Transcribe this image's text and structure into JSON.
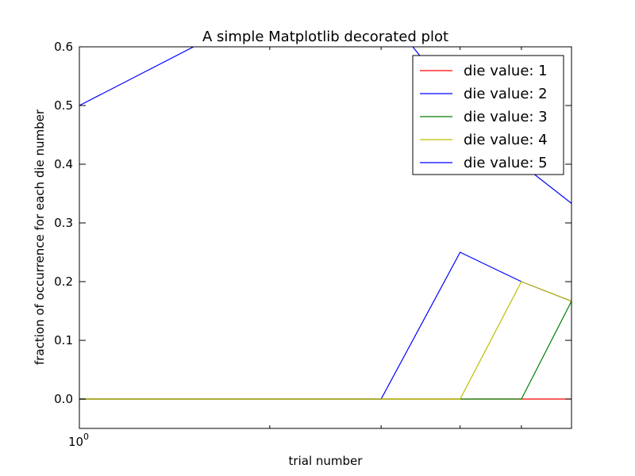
{
  "chart_data": {
    "type": "line",
    "title": "A simple Matplotlib decorated plot",
    "xlabel": "trial number",
    "ylabel": "fraction of occurrence for each die number",
    "xscale": "log",
    "x": [
      1,
      2,
      3,
      4,
      5,
      6
    ],
    "xlim": [
      1,
      6
    ],
    "ylim": [
      -0.05,
      0.6
    ],
    "yticks": [
      0.0,
      0.1,
      0.2,
      0.3,
      0.4,
      0.5,
      0.6
    ],
    "ytick_labels": [
      "0.0",
      "0.1",
      "0.2",
      "0.3",
      "0.4",
      "0.5",
      "0.6"
    ],
    "xtick_labels": [
      {
        "base": "10",
        "exp": "0"
      }
    ],
    "grid": false,
    "legend_position": "top-right",
    "series": [
      {
        "name": "die value: 1",
        "color": "#ff0000",
        "values": [
          0,
          0,
          0,
          0,
          0,
          0
        ]
      },
      {
        "name": "die value: 2",
        "color": "#0000ff",
        "values": [
          0,
          0,
          0,
          0.25,
          0.2,
          0.1667
        ]
      },
      {
        "name": "die value: 3",
        "color": "#008000",
        "values": [
          0,
          0,
          0,
          0,
          0,
          0.1667
        ]
      },
      {
        "name": "die value: 4",
        "color": "#bfbf00",
        "values": [
          0,
          0,
          0,
          0,
          0.2,
          0.1667
        ]
      },
      {
        "name": "die value: 5",
        "color": "#0000ff",
        "values": [
          0.5,
          0.6667,
          0.6667,
          0.5,
          0.4,
          0.3333
        ]
      }
    ]
  }
}
